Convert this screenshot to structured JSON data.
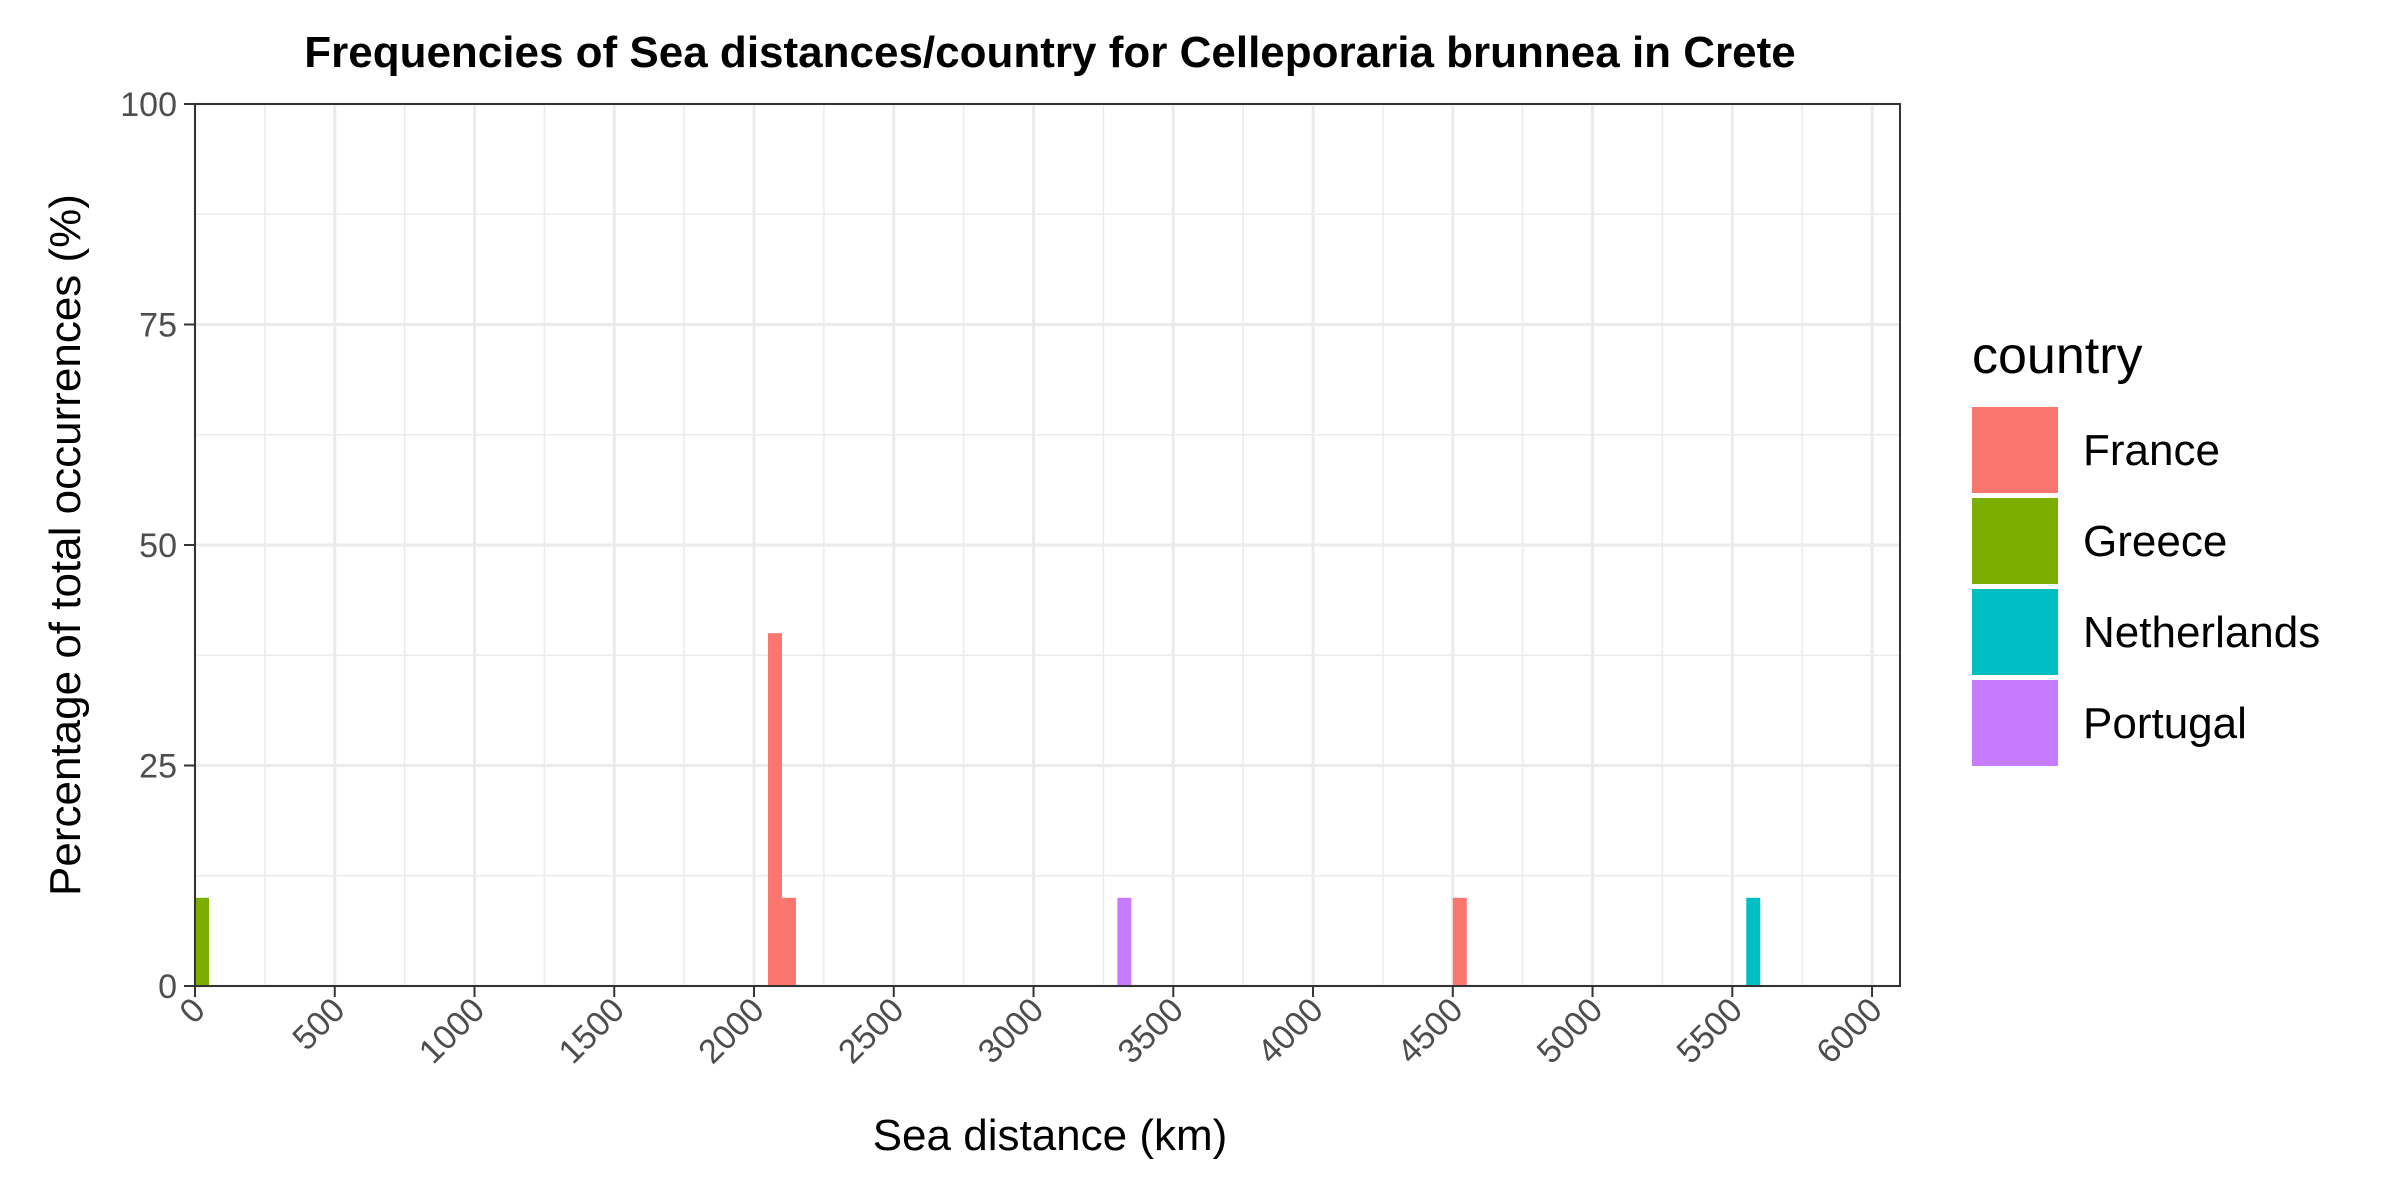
{
  "chart_data": {
    "type": "bar",
    "title": "Frequencies of Sea distances/country for Celleporaria brunnea in Crete",
    "xlabel": "Sea distance (km)",
    "ylabel": "Percentage of total occurrences (%)",
    "xlim": [
      0,
      6100
    ],
    "ylim": [
      0,
      100
    ],
    "x_ticks": [
      0,
      500,
      1000,
      1500,
      2000,
      2500,
      3000,
      3500,
      4000,
      4500,
      5000,
      5500,
      6000
    ],
    "x_tick_labels": [
      "0",
      "500",
      "1000",
      "1500",
      "2000",
      "2500",
      "3000",
      "3500",
      "4000",
      "4500",
      "5000",
      "5500",
      "6000"
    ],
    "y_ticks": [
      0,
      25,
      50,
      75,
      100
    ],
    "y_tick_labels": [
      "0",
      "25",
      "50",
      "75",
      "100"
    ],
    "bin_width": 50,
    "grid": true,
    "legend": {
      "title": "country",
      "position": "right"
    },
    "series": [
      {
        "name": "France",
        "color": "#F8766D",
        "bins": [
          {
            "x": 2050,
            "value": 40
          },
          {
            "x": 2100,
            "value": 10
          },
          {
            "x": 4500,
            "value": 10
          }
        ]
      },
      {
        "name": "Greece",
        "color": "#7CAE00",
        "bins": [
          {
            "x": 0,
            "value": 10
          }
        ]
      },
      {
        "name": "Netherlands",
        "color": "#00BFC4",
        "bins": [
          {
            "x": 5550,
            "value": 10
          }
        ]
      },
      {
        "name": "Portugal",
        "color": "#C77CFF",
        "bins": [
          {
            "x": 3300,
            "value": 10
          }
        ]
      }
    ]
  }
}
